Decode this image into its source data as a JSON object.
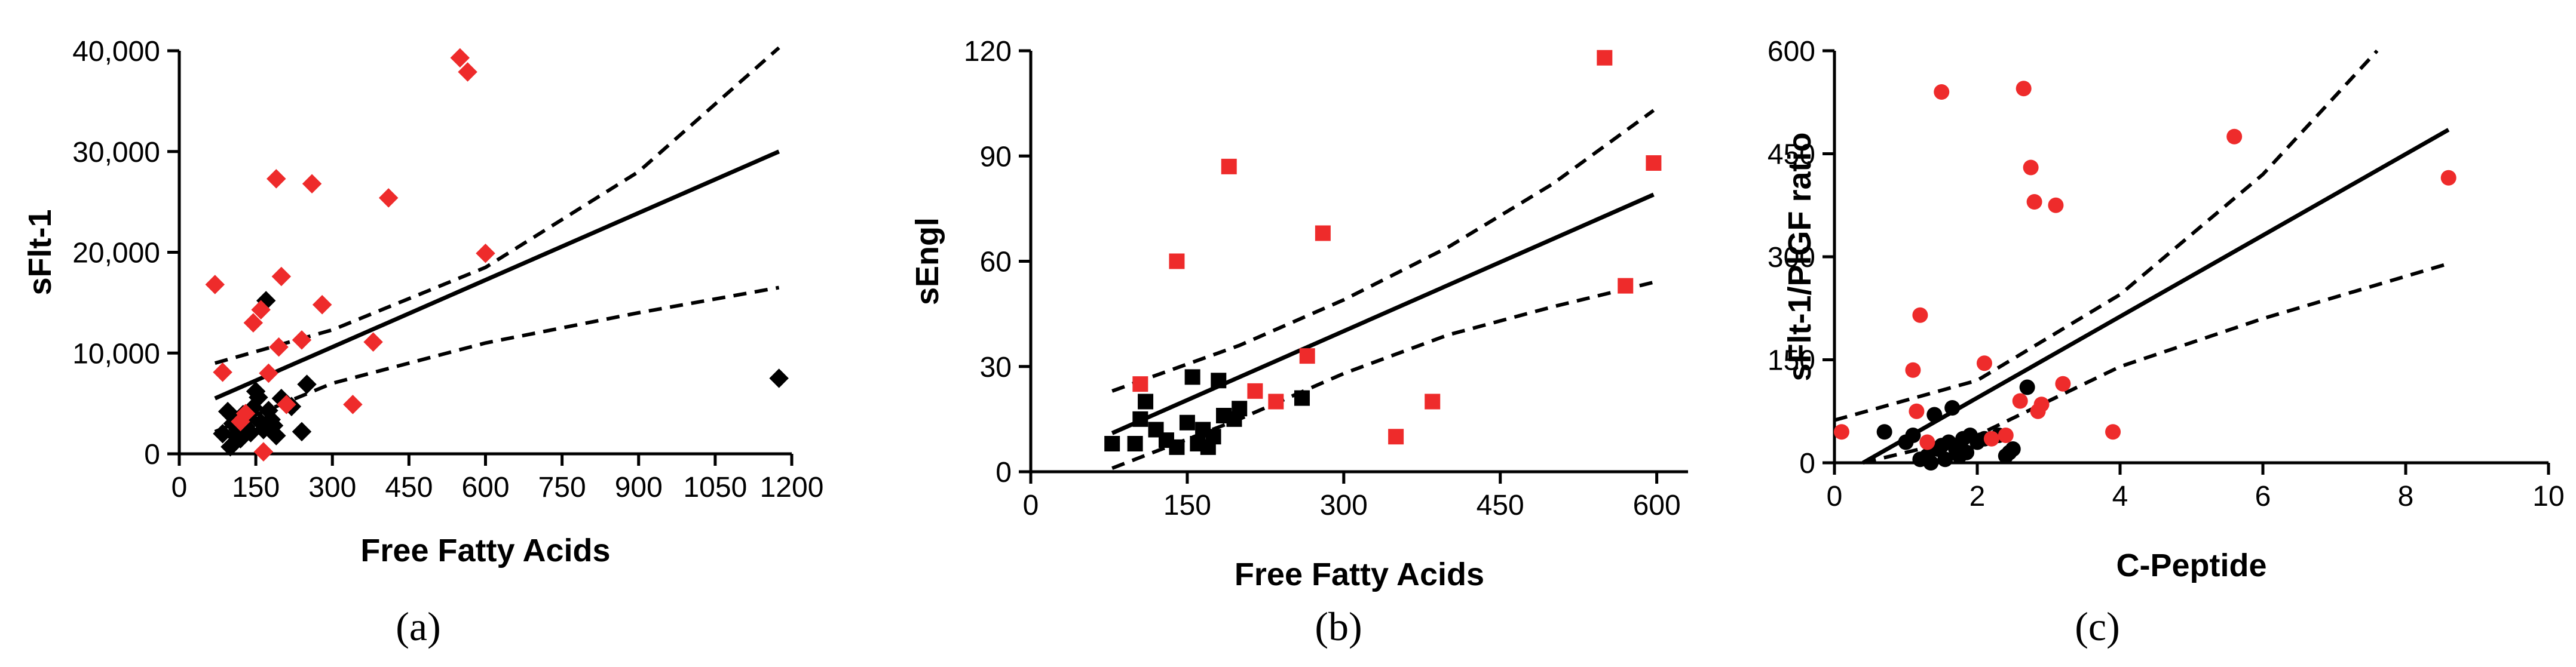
{
  "colors": {
    "case": "#ee2b2b",
    "control": "#000000",
    "axis": "#000000"
  },
  "chart_data": [
    {
      "id": "a",
      "type": "scatter",
      "panel_label": "(a)",
      "marker": "diamond",
      "xlabel": "Free Fatty Acids",
      "ylabel": "sFlt-1",
      "xlim": [
        0,
        1200
      ],
      "ylim": [
        0,
        40000
      ],
      "xticks": [
        0,
        150,
        300,
        450,
        600,
        750,
        900,
        1050,
        1200
      ],
      "yticks": [
        0,
        10000,
        20000,
        30000,
        40000
      ],
      "xtick_labels": [
        "0",
        "150",
        "300",
        "450",
        "600",
        "750",
        "900",
        "1050",
        "1200"
      ],
      "ytick_labels": [
        "0",
        "10,000",
        "20,000",
        "30,000",
        "40,000"
      ],
      "fit": {
        "x": [
          70,
          1175
        ],
        "y": [
          5500,
          30000
        ]
      },
      "ci_upper": {
        "x": [
          70,
          300,
          600,
          900,
          1175
        ],
        "y": [
          9000,
          12300,
          18500,
          28000,
          40300
        ]
      },
      "ci_lower": {
        "x": [
          70,
          300,
          600,
          900,
          1175
        ],
        "y": [
          2200,
          7000,
          11000,
          14000,
          16500
        ]
      },
      "series": [
        {
          "name": "case",
          "x": [
            70,
            85,
            120,
            130,
            145,
            160,
            165,
            175,
            190,
            195,
            200,
            210,
            240,
            260,
            280,
            340,
            380,
            410,
            550,
            565,
            600
          ],
          "y": [
            16800,
            8100,
            3200,
            4000,
            13000,
            14300,
            200,
            8000,
            27300,
            10600,
            17600,
            4900,
            11300,
            26800,
            14800,
            4900,
            11100,
            25400,
            39300,
            37900,
            19900
          ]
        },
        {
          "name": "control",
          "x": [
            85,
            95,
            100,
            105,
            110,
            115,
            120,
            125,
            130,
            135,
            140,
            145,
            150,
            155,
            160,
            165,
            170,
            175,
            180,
            185,
            190,
            200,
            220,
            240,
            250,
            1175
          ],
          "y": [
            2000,
            4200,
            700,
            3000,
            1800,
            2400,
            1500,
            3900,
            2700,
            3600,
            2100,
            4600,
            6200,
            5600,
            3100,
            2400,
            15200,
            4300,
            3400,
            2800,
            1800,
            5500,
            4700,
            2200,
            6900,
            7500
          ]
        }
      ]
    },
    {
      "id": "b",
      "type": "scatter",
      "panel_label": "(b)",
      "marker": "square",
      "xlabel": "Free Fatty Acids",
      "ylabel": "sEngl",
      "xlim": [
        0,
        630
      ],
      "ylim": [
        0,
        120
      ],
      "xticks": [
        0,
        150,
        300,
        450,
        600
      ],
      "yticks": [
        0,
        30,
        60,
        90,
        120
      ],
      "xtick_labels": [
        "0",
        "150",
        "300",
        "450",
        "600"
      ],
      "ytick_labels": [
        "0",
        "30",
        "60",
        "90",
        "120"
      ],
      "fit": {
        "x": [
          78,
          597
        ],
        "y": [
          11,
          79
        ]
      },
      "ci_upper": {
        "x": [
          78,
          200,
          300,
          400,
          500,
          597
        ],
        "y": [
          23,
          36,
          49,
          64,
          82,
          103
        ]
      },
      "ci_lower": {
        "x": [
          78,
          200,
          300,
          400,
          500,
          597
        ],
        "y": [
          1,
          15,
          28,
          39,
          47,
          54
        ]
      },
      "series": [
        {
          "name": "case",
          "x": [
            105,
            140,
            190,
            215,
            235,
            265,
            280,
            350,
            385,
            550,
            570,
            597
          ],
          "y": [
            25,
            60,
            87,
            23,
            20,
            33,
            68,
            10,
            20,
            118,
            53,
            88
          ]
        },
        {
          "name": "control",
          "x": [
            78,
            100,
            105,
            110,
            120,
            130,
            140,
            150,
            155,
            160,
            165,
            170,
            175,
            180,
            185,
            195,
            200,
            260
          ],
          "y": [
            8,
            8,
            15,
            20,
            12,
            9,
            7,
            14,
            27,
            8,
            12,
            7,
            10,
            26,
            16,
            15,
            18,
            21
          ]
        }
      ]
    },
    {
      "id": "c",
      "type": "scatter",
      "panel_label": "(c)",
      "marker": "circle",
      "xlabel": "C-Peptide",
      "ylabel": "sFlt-1/PlGF ratio",
      "xlim": [
        0,
        10
      ],
      "ylim": [
        0,
        600
      ],
      "xticks": [
        0,
        2,
        4,
        6,
        8,
        10
      ],
      "yticks": [
        0,
        150,
        300,
        450,
        600
      ],
      "xtick_labels": [
        "0",
        "2",
        "4",
        "6",
        "8",
        "10"
      ],
      "ytick_labels": [
        "0",
        "150",
        "300",
        "450",
        "600"
      ],
      "fit": {
        "x": [
          0.4,
          8.6
        ],
        "y": [
          0,
          485
        ]
      },
      "ci_upper": {
        "x": [
          0.0,
          2.0,
          4.0,
          6.0,
          7.6
        ],
        "y": [
          62,
          120,
          245,
          420,
          600
        ]
      },
      "ci_lower": {
        "x": [
          0.4,
          2.0,
          4.0,
          6.0,
          8.6
        ],
        "y": [
          0,
          40,
          140,
          210,
          290
        ]
      },
      "series": [
        {
          "name": "case",
          "x": [
            0.1,
            1.1,
            1.15,
            1.2,
            1.5,
            2.1,
            2.2,
            2.4,
            2.65,
            2.75,
            2.8,
            2.9,
            3.1,
            3.2,
            3.9,
            5.6,
            8.6
          ],
          "y": [
            45,
            135,
            75,
            215,
            540,
            145,
            35,
            40,
            545,
            430,
            380,
            85,
            375,
            115,
            45,
            475,
            415
          ],
          "x_extra": [
            1.3,
            2.6,
            2.85
          ],
          "y_extra": [
            30,
            90,
            75
          ]
        },
        {
          "name": "control",
          "x": [
            0.7,
            1.0,
            1.1,
            1.2,
            1.3,
            1.35,
            1.4,
            1.45,
            1.5,
            1.55,
            1.6,
            1.65,
            1.7,
            1.75,
            1.8,
            1.85,
            1.9,
            2.0,
            2.1,
            2.3,
            2.4,
            2.45,
            2.5,
            2.7
          ],
          "y": [
            45,
            30,
            40,
            5,
            10,
            0,
            70,
            20,
            25,
            5,
            30,
            80,
            20,
            10,
            35,
            15,
            40,
            30,
            35,
            40,
            10,
            15,
            20,
            110
          ]
        }
      ]
    }
  ]
}
